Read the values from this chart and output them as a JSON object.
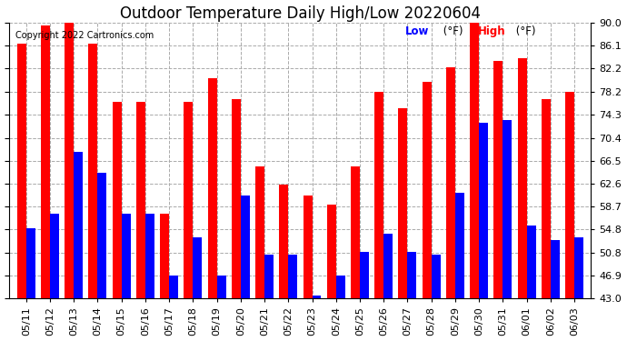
{
  "title": "Outdoor Temperature Daily High/Low 20220604",
  "copyright": "Copyright 2022 Cartronics.com",
  "dates": [
    "05/11",
    "05/12",
    "05/13",
    "05/14",
    "05/15",
    "05/16",
    "05/17",
    "05/18",
    "05/19",
    "05/20",
    "05/21",
    "05/22",
    "05/23",
    "05/24",
    "05/25",
    "05/26",
    "05/27",
    "05/28",
    "05/29",
    "05/30",
    "05/31",
    "06/01",
    "06/02",
    "06/03"
  ],
  "high": [
    86.5,
    89.5,
    90.0,
    86.5,
    76.5,
    76.5,
    57.5,
    76.5,
    80.5,
    77.0,
    65.5,
    62.5,
    60.5,
    59.0,
    65.5,
    78.2,
    75.5,
    80.0,
    82.5,
    90.0,
    83.5,
    84.0,
    77.0,
    78.2
  ],
  "low": [
    55.0,
    57.5,
    68.0,
    64.5,
    57.5,
    57.5,
    46.9,
    53.5,
    46.9,
    60.5,
    50.5,
    50.5,
    43.5,
    47.0,
    51.0,
    54.0,
    51.0,
    50.5,
    61.0,
    73.0,
    73.5,
    55.5,
    53.0,
    53.5
  ],
  "high_color": "#ff0000",
  "low_color": "#0000ff",
  "bg_color": "#ffffff",
  "grid_color": "#aaaaaa",
  "ymin": 43.0,
  "ymax": 90.0,
  "yticks": [
    43.0,
    46.9,
    50.8,
    54.8,
    58.7,
    62.6,
    66.5,
    70.4,
    74.3,
    78.2,
    82.2,
    86.1,
    90.0
  ],
  "title_fontsize": 12,
  "tick_fontsize": 8,
  "bar_width": 0.38
}
